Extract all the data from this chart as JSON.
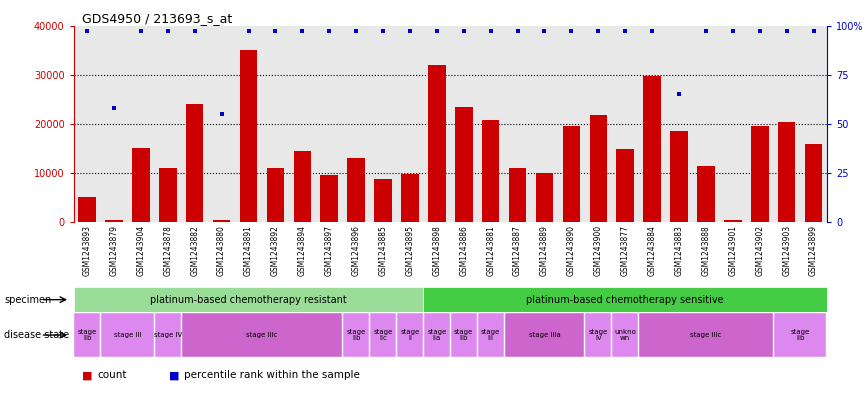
{
  "title": "GDS4950 / 213693_s_at",
  "samples": [
    "GSM1243893",
    "GSM1243879",
    "GSM1243904",
    "GSM1243878",
    "GSM1243882",
    "GSM1243880",
    "GSM1243891",
    "GSM1243892",
    "GSM1243894",
    "GSM1243897",
    "GSM1243896",
    "GSM1243885",
    "GSM1243895",
    "GSM1243898",
    "GSM1243886",
    "GSM1243881",
    "GSM1243887",
    "GSM1243889",
    "GSM1243890",
    "GSM1243900",
    "GSM1243877",
    "GSM1243884",
    "GSM1243883",
    "GSM1243888",
    "GSM1243901",
    "GSM1243902",
    "GSM1243903",
    "GSM1243899"
  ],
  "counts": [
    5000,
    500,
    15000,
    11000,
    24000,
    500,
    35000,
    11000,
    14500,
    9500,
    13000,
    8800,
    9800,
    32000,
    23500,
    20800,
    11000,
    9900,
    19500,
    21800,
    14800,
    29700,
    18500,
    11500,
    500,
    19500,
    20300,
    15800
  ],
  "dot_y_positions": [
    97,
    58,
    97,
    97,
    97,
    55,
    97,
    97,
    97,
    97,
    97,
    97,
    97,
    97,
    97,
    97,
    97,
    97,
    97,
    97,
    97,
    97,
    65,
    97,
    97,
    97,
    97,
    97
  ],
  "bar_color": "#cc0000",
  "dot_color": "#0000cc",
  "ylim_left": [
    0,
    40000
  ],
  "ylim_right": [
    0,
    100
  ],
  "yticks_left": [
    0,
    10000,
    20000,
    30000,
    40000
  ],
  "ytick_labels_left": [
    "0",
    "10000",
    "20000",
    "30000",
    "40000"
  ],
  "yticks_right": [
    0,
    25,
    50,
    75,
    100
  ],
  "ytick_labels_right": [
    "0",
    "25",
    "50",
    "75",
    "100%"
  ],
  "hgrid_values": [
    10000,
    20000,
    30000
  ],
  "specimen_groups": [
    {
      "label": "platinum-based chemotherapy resistant",
      "start": 0,
      "end": 13,
      "color": "#99dd99"
    },
    {
      "label": "platinum-based chemotherapy sensitive",
      "start": 13,
      "end": 28,
      "color": "#44cc44"
    }
  ],
  "disease_states": [
    {
      "label": "stage\nIIb",
      "start": 0,
      "end": 1,
      "color": "#dd88ee"
    },
    {
      "label": "stage III",
      "start": 1,
      "end": 3,
      "color": "#dd88ee"
    },
    {
      "label": "stage IV",
      "start": 3,
      "end": 4,
      "color": "#dd88ee"
    },
    {
      "label": "stage IIIc",
      "start": 4,
      "end": 10,
      "color": "#cc66cc"
    },
    {
      "label": "stage\nIIb",
      "start": 10,
      "end": 11,
      "color": "#dd88ee"
    },
    {
      "label": "stage\nIIc",
      "start": 11,
      "end": 12,
      "color": "#dd88ee"
    },
    {
      "label": "stage\nII",
      "start": 12,
      "end": 13,
      "color": "#dd88ee"
    },
    {
      "label": "stage\nIIa",
      "start": 13,
      "end": 14,
      "color": "#dd88ee"
    },
    {
      "label": "stage\nIIb",
      "start": 14,
      "end": 15,
      "color": "#dd88ee"
    },
    {
      "label": "stage\nIII",
      "start": 15,
      "end": 16,
      "color": "#dd88ee"
    },
    {
      "label": "stage IIIa",
      "start": 16,
      "end": 19,
      "color": "#cc66cc"
    },
    {
      "label": "stage\nIV",
      "start": 19,
      "end": 20,
      "color": "#dd88ee"
    },
    {
      "label": "unkno\nwn",
      "start": 20,
      "end": 21,
      "color": "#dd88ee"
    },
    {
      "label": "stage IIIc",
      "start": 21,
      "end": 26,
      "color": "#cc66cc"
    },
    {
      "label": "stage\nIIb",
      "start": 26,
      "end": 28,
      "color": "#dd88ee"
    }
  ],
  "legend_items": [
    {
      "color": "#cc0000",
      "label": "count"
    },
    {
      "color": "#0000cc",
      "label": "percentile rank within the sample"
    }
  ],
  "plot_bg": "#e8e8e8",
  "background_color": "#ffffff",
  "title_fontsize": 9,
  "bar_tick_fontsize": 5.5,
  "panel_fontsize": 7,
  "legend_fontsize": 7.5
}
